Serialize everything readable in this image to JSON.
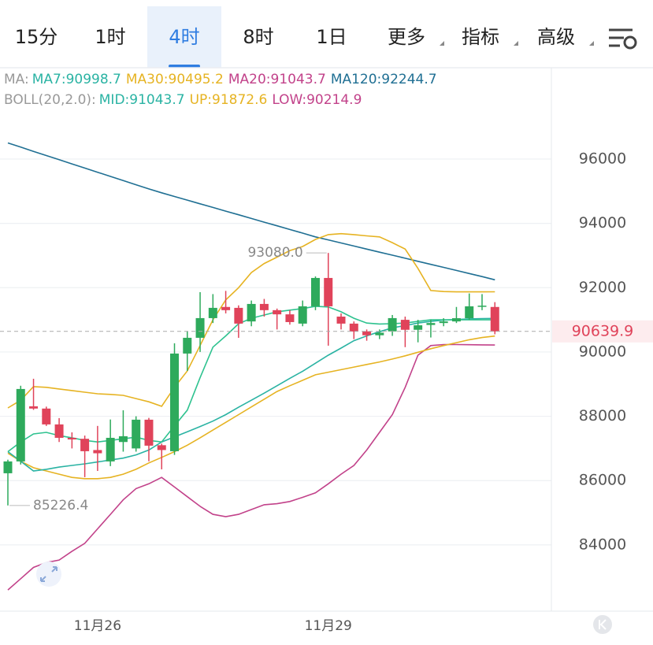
{
  "tabs": {
    "items": [
      "15分",
      "1时",
      "4时",
      "8时",
      "1日",
      "更多",
      "指标",
      "高级"
    ],
    "active": 2
  },
  "indicators": {
    "ma": {
      "label": "MA:",
      "items": [
        {
          "text": "MA7:90998.7",
          "color": "#2ab3a3"
        },
        {
          "text": "MA30:90495.2",
          "color": "#e6b322"
        },
        {
          "text": "MA20:91043.7",
          "color": "#c2428a"
        },
        {
          "text": "MA120:92244.7",
          "color": "#1f6f93"
        }
      ]
    },
    "boll": {
      "label": "BOLL(20,2.0):",
      "items": [
        {
          "text": "MID:91043.7",
          "color": "#2ab3a3"
        },
        {
          "text": "UP:91872.6",
          "color": "#e6b322"
        },
        {
          "text": "LOW:90214.9",
          "color": "#c2428a"
        }
      ]
    }
  },
  "chart_data": {
    "type": "candlestick",
    "categories": [
      null,
      null,
      null,
      null,
      null,
      null,
      null,
      "11月26",
      null,
      null,
      null,
      null,
      null,
      null,
      null,
      null,
      null,
      null,
      null,
      null,
      null,
      null,
      null,
      null,
      null,
      "11月29",
      null,
      null,
      null,
      null,
      null,
      null,
      null,
      null,
      null,
      null,
      null,
      null,
      null
    ],
    "candles": {
      "open": [
        86228,
        86596,
        88310,
        88240,
        87747,
        87330,
        87300,
        86950,
        86596,
        87200,
        87000,
        87894,
        87100,
        86914,
        89951,
        90441,
        91053,
        91400,
        91372,
        90950,
        91494,
        91300,
        91170,
        90882,
        91420,
        92302,
        91100,
        90882,
        90640,
        90520,
        90640,
        91000,
        90690,
        90840,
        90900,
        90950,
        91050,
        91420,
        91400
      ],
      "high": [
        86650,
        88950,
        89167,
        88300,
        87943,
        87500,
        87400,
        87700,
        87900,
        88187,
        88000,
        87950,
        87150,
        90270,
        90650,
        91861,
        91800,
        91900,
        91450,
        91600,
        91650,
        91350,
        91300,
        91600,
        92350,
        93080,
        91200,
        90950,
        90700,
        90700,
        91150,
        91100,
        91000,
        91000,
        91050,
        91400,
        91820,
        91800,
        91550
      ],
      "low": [
        85226.4,
        86500,
        88200,
        87700,
        87200,
        87000,
        86106,
        86300,
        86450,
        86900,
        86900,
        86600,
        86350,
        86800,
        89412,
        90000,
        90900,
        91200,
        90440,
        90800,
        91100,
        90700,
        90850,
        90800,
        91300,
        90196,
        90700,
        90400,
        90350,
        90400,
        90500,
        90150,
        90300,
        90450,
        90800,
        90900,
        91000,
        91300,
        90550
      ],
      "close": [
        86596,
        88849,
        88240,
        87747,
        87330,
        87280,
        86914,
        86850,
        87330,
        87380,
        87894,
        87086,
        86950,
        89951,
        90441,
        91053,
        91372,
        91300,
        90882,
        91494,
        91300,
        91170,
        90930,
        91420,
        92302,
        91420,
        90882,
        90637,
        90520,
        90600,
        91053,
        90690,
        90830,
        90900,
        90950,
        91050,
        91420,
        91440,
        90639.9
      ]
    },
    "up_color": "#2eaa5c",
    "down_color": "#e0435a",
    "series": [
      {
        "color": "#1f6f93",
        "values": [
          96500,
          96370,
          96240,
          96110,
          95980,
          95850,
          95720,
          95590,
          95460,
          95330,
          95200,
          95070,
          94950,
          94836,
          94722,
          94608,
          94494,
          94380,
          94266,
          94152,
          94038,
          93924,
          93810,
          93696,
          93580,
          93485,
          93390,
          93295,
          93200,
          93105,
          93010,
          92915,
          92820,
          92725,
          92630,
          92535,
          92440,
          92345,
          92245
        ]
      },
      {
        "color": "#e6b322",
        "values": [
          88260,
          88500,
          88920,
          88900,
          88850,
          88800,
          88750,
          88700,
          88680,
          88650,
          88550,
          88450,
          88310,
          88900,
          89410,
          90200,
          91000,
          91620,
          92000,
          92470,
          92750,
          92950,
          93150,
          93280,
          93500,
          93650,
          93680,
          93650,
          93610,
          93580,
          93400,
          93200,
          92600,
          91910,
          91880,
          91870,
          91870,
          91870,
          91873
        ]
      },
      {
        "color": "#c2428a",
        "values": [
          82600,
          82950,
          83300,
          83450,
          83530,
          83800,
          84050,
          84500,
          84950,
          85400,
          85750,
          85900,
          86100,
          85800,
          85500,
          85200,
          84950,
          84880,
          84950,
          85100,
          85250,
          85280,
          85350,
          85480,
          85620,
          85900,
          86200,
          86470,
          86950,
          87500,
          88050,
          88900,
          89900,
          90200,
          90230,
          90230,
          90225,
          90220,
          90215
        ]
      },
      {
        "color": "#e6b322",
        "values": [
          86850,
          86600,
          86400,
          86300,
          86200,
          86100,
          86060,
          86060,
          86100,
          86200,
          86350,
          86550,
          86720,
          86900,
          87100,
          87330,
          87570,
          87810,
          88050,
          88290,
          88530,
          88770,
          88950,
          89120,
          89290,
          89370,
          89450,
          89530,
          89610,
          89690,
          89780,
          89880,
          89990,
          90100,
          90200,
          90290,
          90380,
          90450,
          90495
        ]
      },
      {
        "color": "#2ab3a3",
        "values": [
          86900,
          86600,
          86300,
          86350,
          86420,
          86470,
          86520,
          86580,
          86640,
          86700,
          86800,
          86950,
          87200,
          87360,
          87520,
          87680,
          87850,
          88050,
          88280,
          88500,
          88720,
          88950,
          89180,
          89400,
          89650,
          89900,
          90120,
          90350,
          90500,
          90630,
          90750,
          90820,
          90900,
          90950,
          90990,
          91010,
          91030,
          91040,
          91044
        ]
      },
      {
        "color": "#2ec28f",
        "values": [
          86900,
          87200,
          87450,
          87500,
          87400,
          87330,
          87250,
          87200,
          87250,
          87300,
          87350,
          87250,
          87200,
          87700,
          88190,
          89200,
          90150,
          90500,
          90880,
          91050,
          91150,
          91250,
          91300,
          91350,
          91420,
          91400,
          91250,
          91050,
          90900,
          90870,
          90880,
          90900,
          90950,
          91000,
          91000,
          91000,
          91000,
          91000,
          90999
        ]
      }
    ],
    "ylim": [
      81940,
      98840
    ],
    "yticks": [
      84000,
      86000,
      88000,
      90000,
      92000,
      94000,
      96000
    ],
    "grid": true,
    "last_price": 90639.9,
    "max_label": {
      "index": 25,
      "text": "93080.0"
    },
    "min_label": {
      "index": 0,
      "text": "85226.4"
    }
  }
}
